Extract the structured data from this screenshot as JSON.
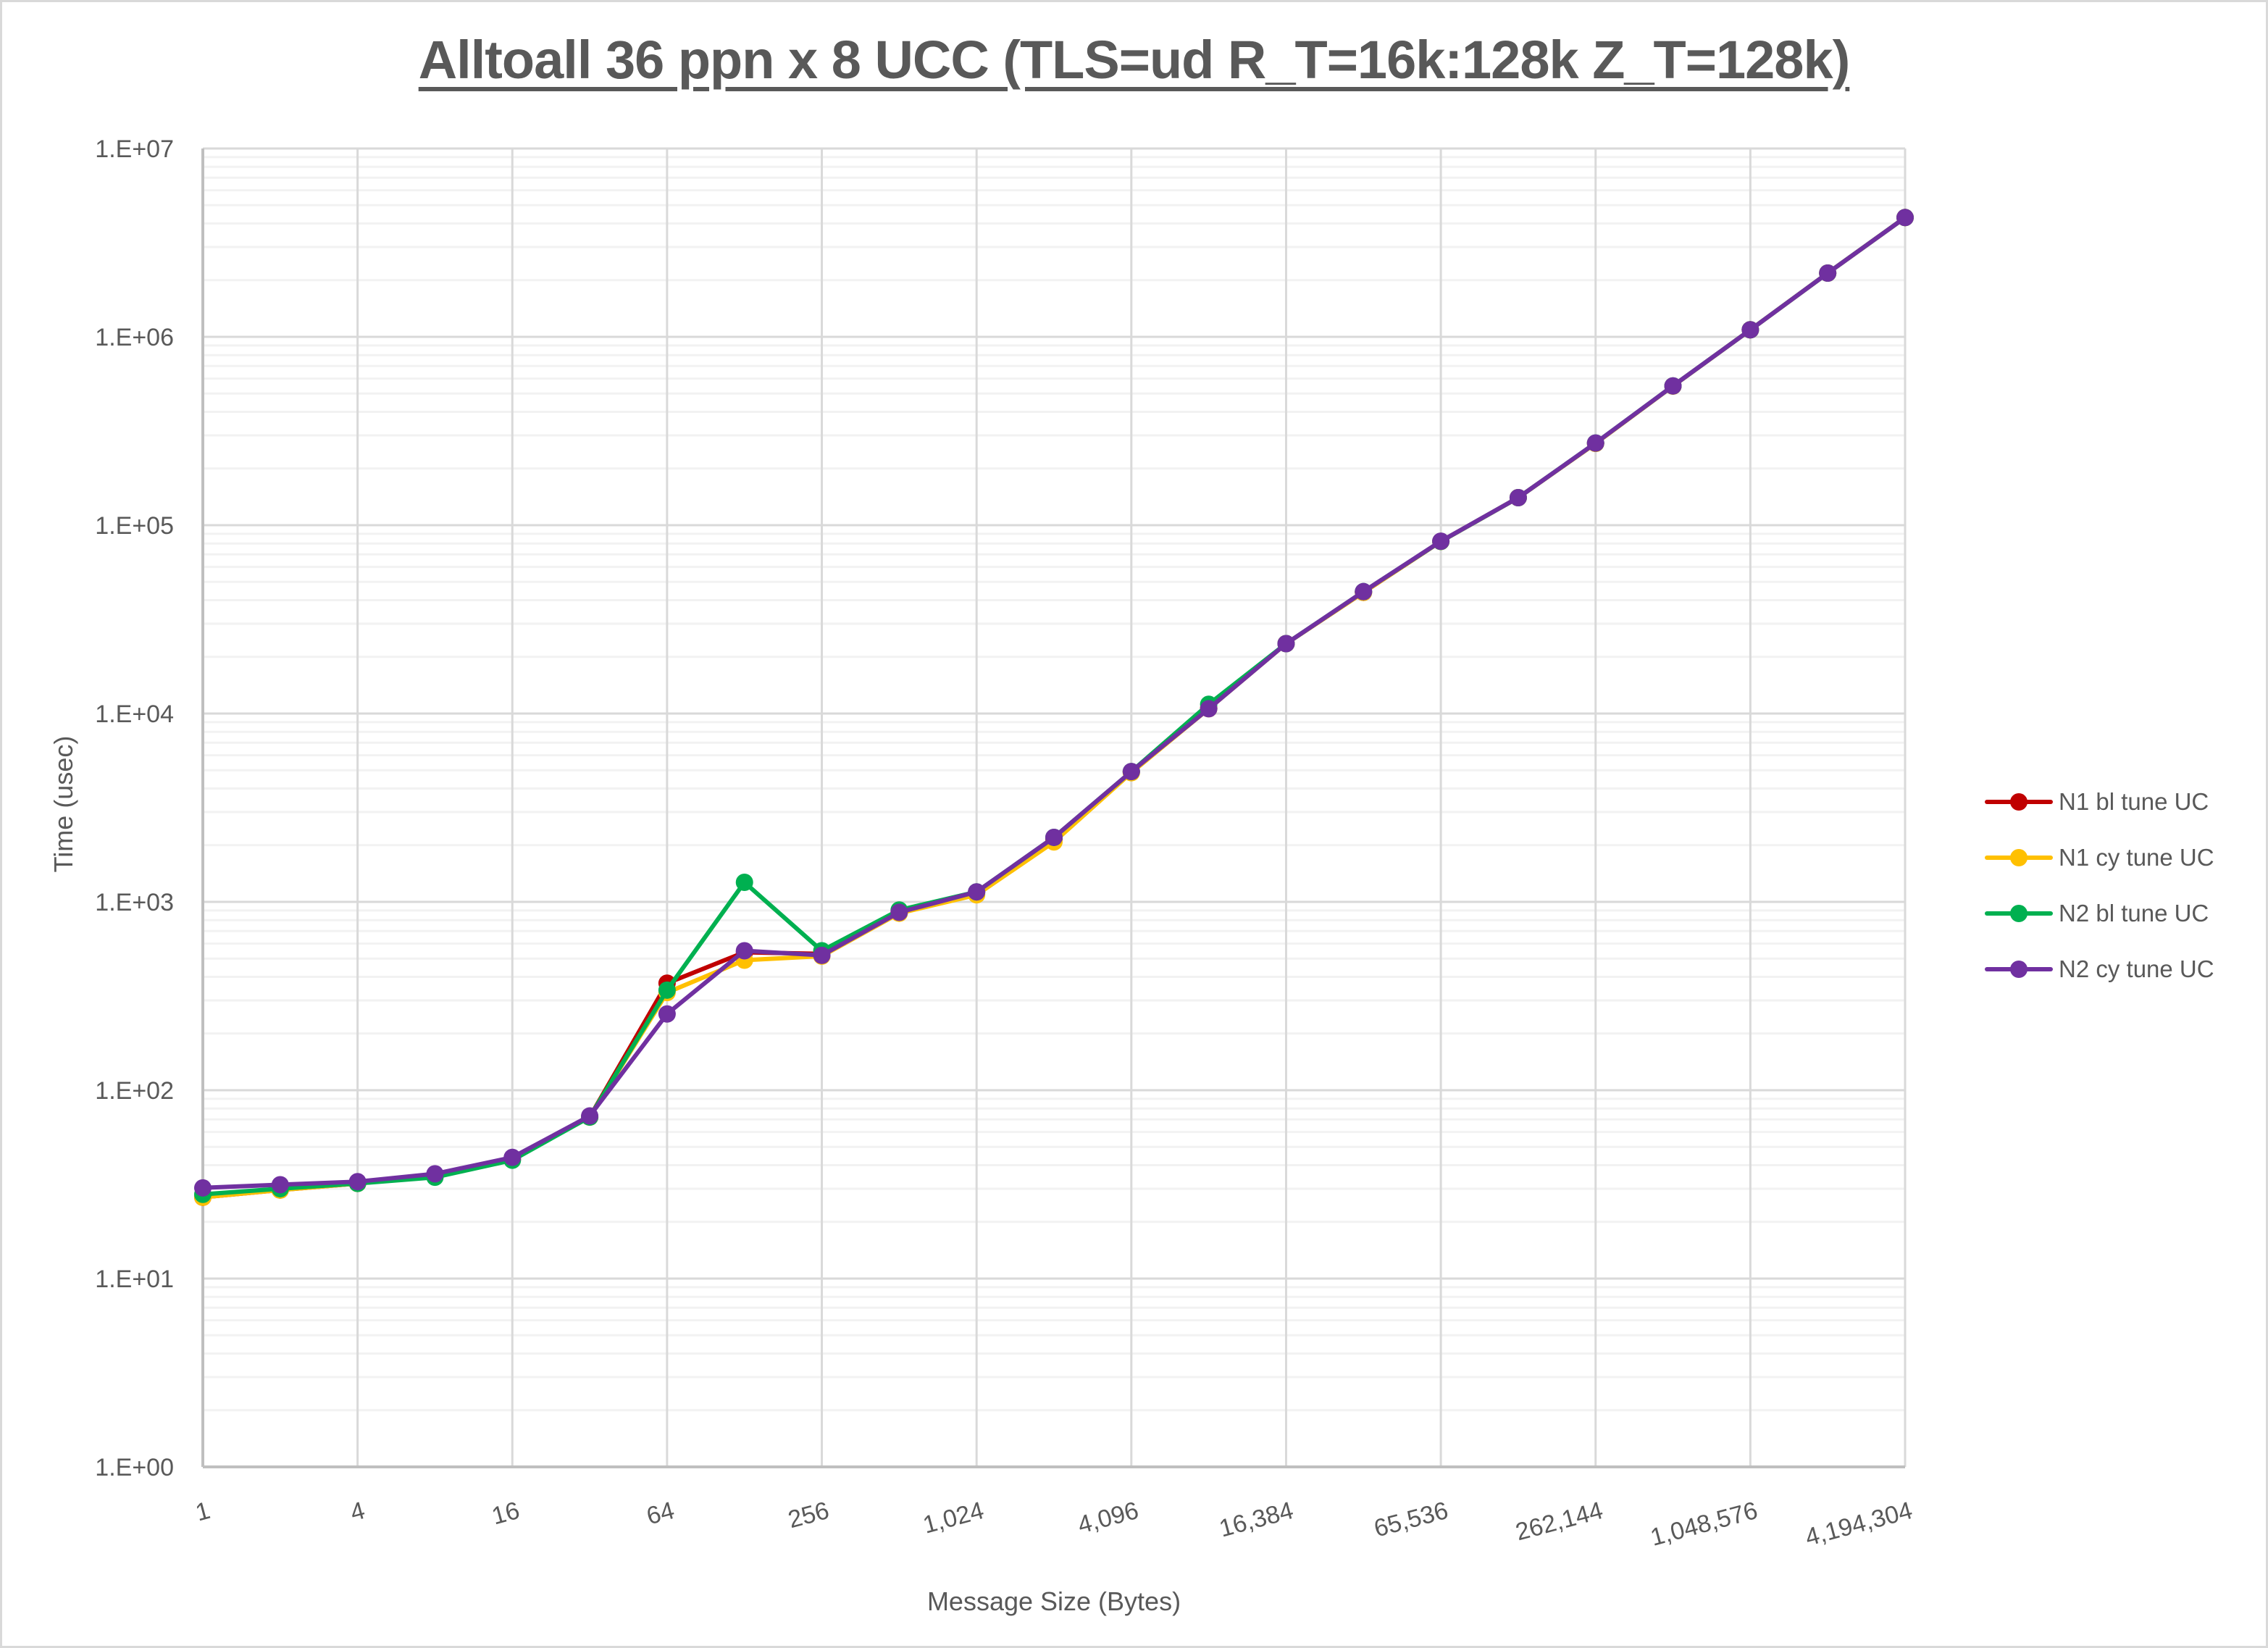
{
  "chart_data": {
    "type": "line",
    "title": "Alltoall 36 ppn x 8 UCC (TLS=ud R_T=16k:128k Z_T=128k)",
    "xlabel": "Message Size (Bytes)",
    "ylabel": "Time (usec)",
    "x_scale": "log2",
    "y_scale": "log10",
    "ylim": [
      1,
      10000000
    ],
    "grid": true,
    "legend_position": "right",
    "x": [
      1,
      2,
      4,
      8,
      16,
      32,
      64,
      128,
      256,
      512,
      1024,
      2048,
      4096,
      8192,
      16384,
      32768,
      65536,
      131072,
      262144,
      524288,
      1048576,
      2097152,
      4194304
    ],
    "x_tick_labels": [
      "1",
      "4",
      "16",
      "64",
      "256",
      "1,024",
      "4,096",
      "16,384",
      "65,536",
      "262,144",
      "1,048,576",
      "4,194,304"
    ],
    "y_tick_labels": [
      "1.E+00",
      "1.E+01",
      "1.E+02",
      "1.E+03",
      "1.E+04",
      "1.E+05",
      "1.E+06",
      "1.E+07"
    ],
    "series": [
      {
        "name": "N1 bl tune UC",
        "color": "#c00000",
        "values": [
          27,
          29.5,
          32,
          35,
          43,
          72,
          370,
          540,
          530,
          890,
          1120,
          2150,
          4900,
          10700,
          23500,
          44000,
          82000,
          140000,
          272000,
          548000,
          1090000,
          2180000,
          4300000
        ]
      },
      {
        "name": "N1 cy tune UC",
        "color": "#ffc000",
        "values": [
          27,
          29.5,
          32,
          35,
          43,
          72,
          330,
          490,
          515,
          870,
          1090,
          2080,
          4850,
          10600,
          23500,
          44000,
          82000,
          140000,
          272000,
          548000,
          1090000,
          2180000,
          4300000
        ]
      },
      {
        "name": "N2 bl tune UC",
        "color": "#00b050",
        "values": [
          28,
          30,
          32,
          34.5,
          42.5,
          72,
          340,
          1270,
          550,
          905,
          1130,
          2200,
          4920,
          11200,
          23500,
          44400,
          82000,
          140000,
          273000,
          549000,
          1090000,
          2180000,
          4300000
        ]
      },
      {
        "name": "N2 cy tune UC",
        "color": "#7030a0",
        "values": [
          30.3,
          31.5,
          32.7,
          36,
          44,
          73,
          254,
          550,
          520,
          880,
          1130,
          2200,
          4920,
          10600,
          23500,
          44400,
          82200,
          140000,
          273000,
          549000,
          1090000,
          2180000,
          4300000
        ]
      }
    ]
  }
}
